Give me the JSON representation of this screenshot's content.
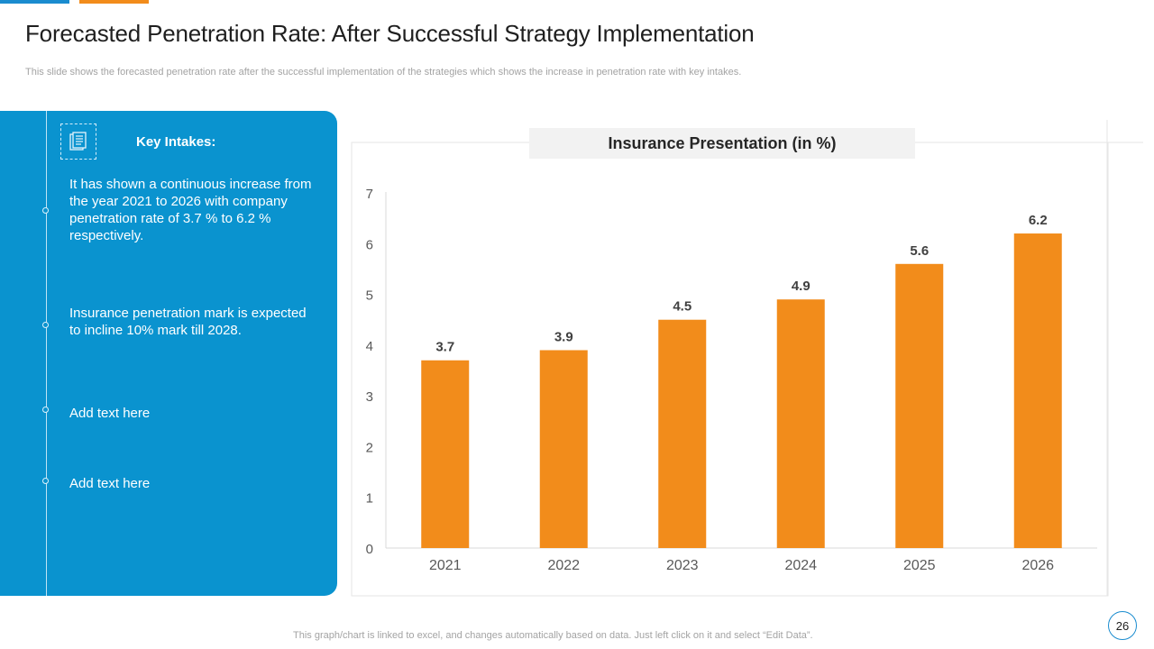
{
  "slide": {
    "title": "Forecasted Penetration Rate: After Successful Strategy Implementation",
    "subtitle": "This slide shows the forecasted penetration rate after the successful implementation of the strategies which shows the increase in penetration rate with key intakes.",
    "footer": "This graph/chart is linked to excel,  and changes automatically based on data. Just left click on it and select “Edit Data”.",
    "page_number": "26"
  },
  "panel": {
    "heading": "Key Intakes:",
    "icon": "document-icon",
    "points": [
      "It has shown a continuous increase from the year 2021 to 2026 with company penetration rate of 3.7 % to 6.2 % respectively.",
      "Insurance penetration mark is expected to incline 10% mark till 2028.",
      "Add text here",
      "Add text here"
    ]
  },
  "colors": {
    "accent_blue": "#0a93cf",
    "accent_orange": "#f28c1b",
    "bar": "#f28c1b"
  },
  "chart_data": {
    "type": "bar",
    "title": "Insurance Presentation (in %)",
    "categories": [
      "2021",
      "2022",
      "2023",
      "2024",
      "2025",
      "2026"
    ],
    "values": [
      3.7,
      3.9,
      4.5,
      4.9,
      5.6,
      6.2
    ],
    "data_labels": [
      "3.7",
      "3.9",
      "4.5",
      "4.9",
      "5.6",
      "6.2"
    ],
    "xlabel": "",
    "ylabel": "",
    "ylim": [
      0,
      7
    ],
    "yticks": [
      0,
      1,
      2,
      3,
      4,
      5,
      6,
      7
    ],
    "grid": false,
    "legend": "none"
  }
}
